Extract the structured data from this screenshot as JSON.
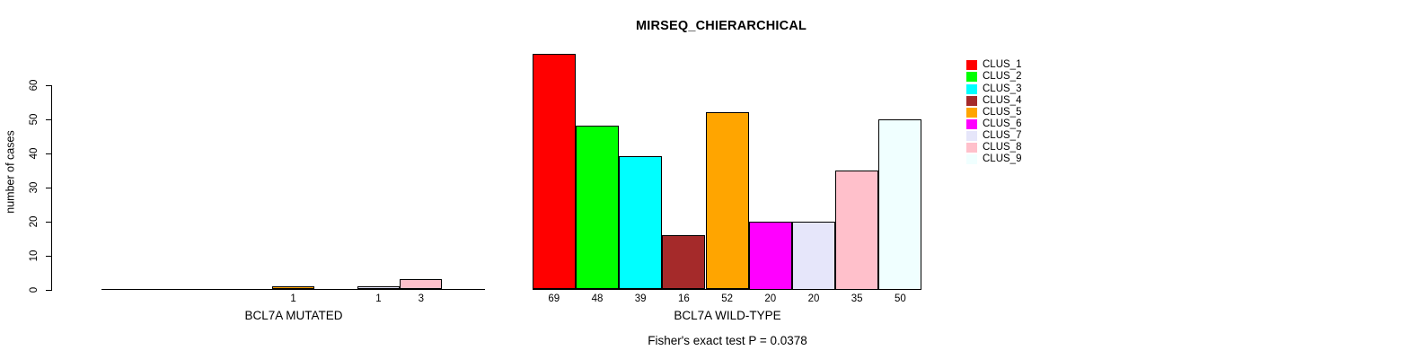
{
  "title": "MIRSEQ_CHIERARCHICAL",
  "chart_data": {
    "type": "bar",
    "title": "MIRSEQ_CHIERARCHICAL",
    "ylabel": "number of cases",
    "ylim": [
      0,
      60
    ],
    "yticks": [
      0,
      10,
      20,
      30,
      40,
      50,
      60
    ],
    "grid": "off",
    "legend_position": "right",
    "annotation": "Fisher's exact test P = 0.0378",
    "categories": [
      "CLUS_1",
      "CLUS_2",
      "CLUS_3",
      "CLUS_4",
      "CLUS_5",
      "CLUS_6",
      "CLUS_7",
      "CLUS_8",
      "CLUS_9"
    ],
    "colors": [
      "#FF0000",
      "#00FF00",
      "#00FFFF",
      "#A52A2A",
      "#FFA500",
      "#FF00FF",
      "#E6E6FA",
      "#FFC0CB",
      "#F0FFFF"
    ],
    "bar_label_rule": "value shown under bar only when value > 0",
    "series": [
      {
        "name": "BCL7A MUTATED",
        "values": [
          0,
          0,
          0,
          0,
          1,
          0,
          1,
          3,
          0
        ]
      },
      {
        "name": "BCL7A WILD-TYPE",
        "values": [
          69,
          48,
          39,
          16,
          52,
          20,
          20,
          35,
          50
        ]
      }
    ]
  },
  "legend": {
    "items": [
      "CLUS_1",
      "CLUS_2",
      "CLUS_3",
      "CLUS_4",
      "CLUS_5",
      "CLUS_6",
      "CLUS_7",
      "CLUS_8",
      "CLUS_9"
    ]
  }
}
